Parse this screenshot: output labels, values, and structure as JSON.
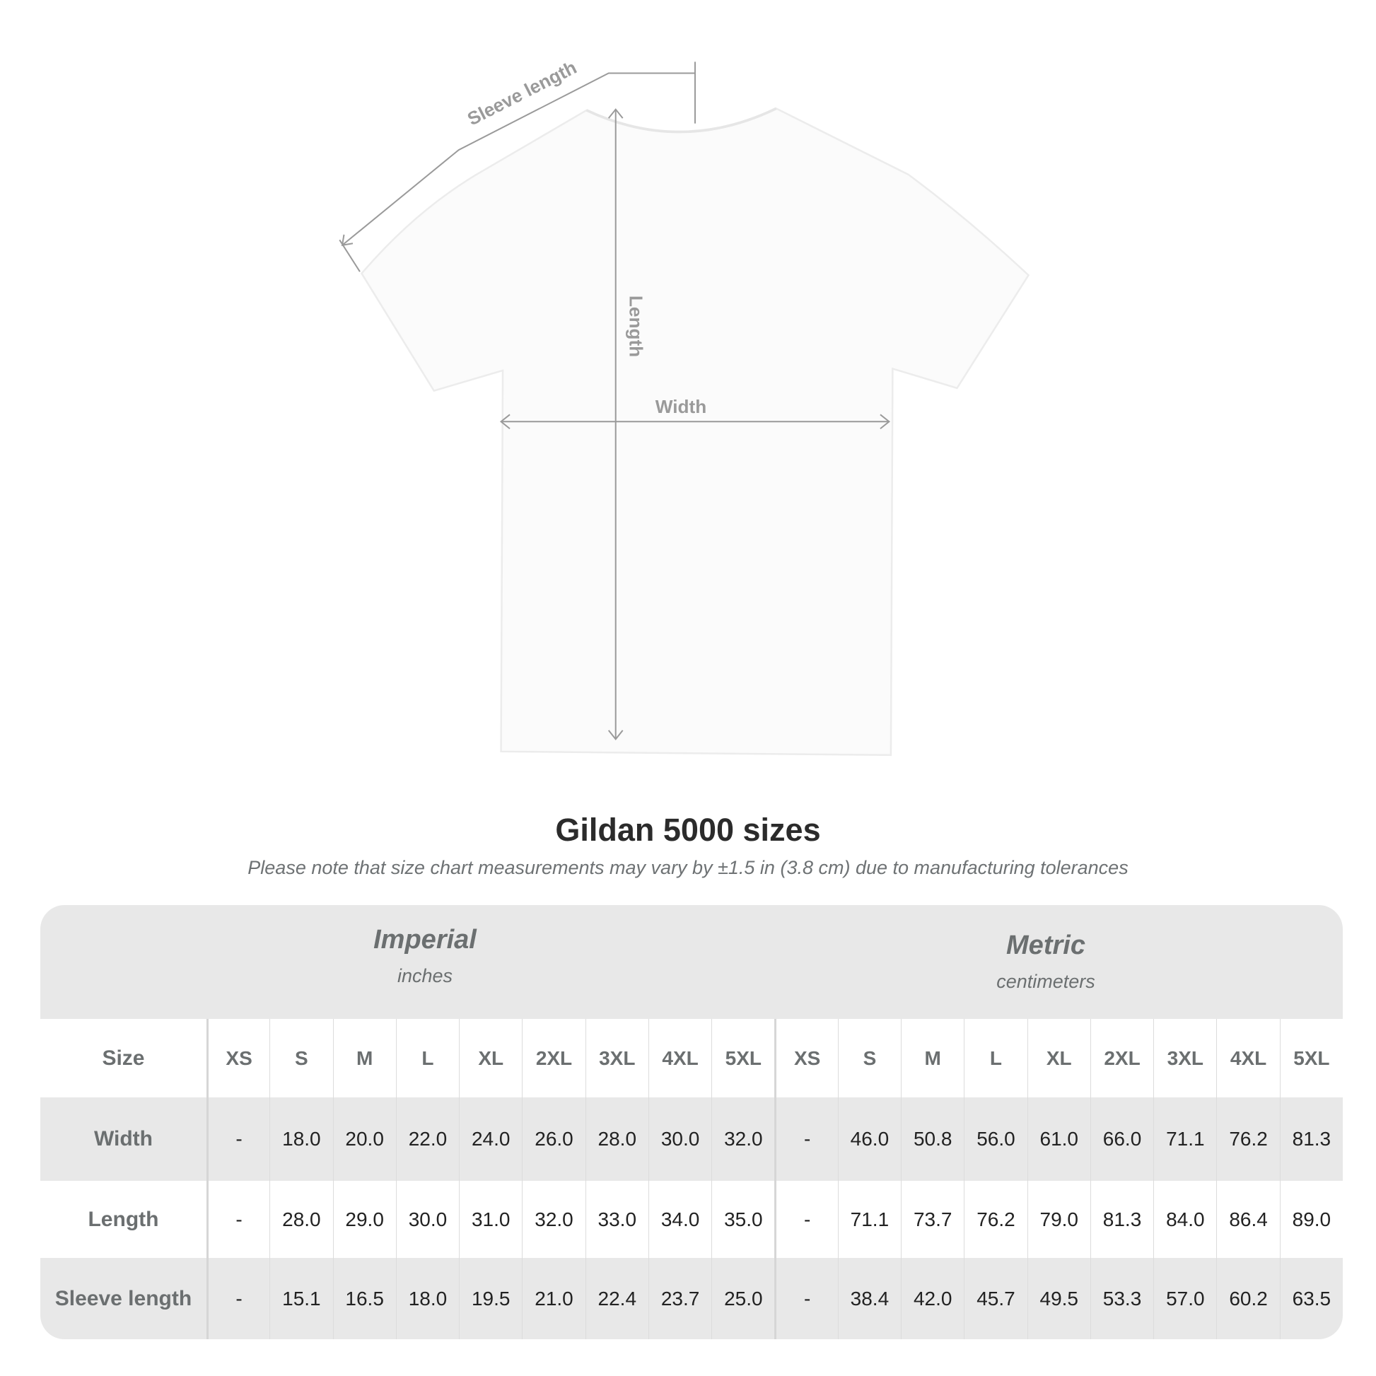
{
  "diagram": {
    "labels": {
      "sleeve": "Sleeve length",
      "length": "Length",
      "width": "Width"
    },
    "colors": {
      "lines": "#9a9a9a",
      "shirt": "#fbfbfb"
    }
  },
  "title": "Gildan 5000 sizes",
  "note": "Please note that size chart measurements may vary by ±1.5 in (3.8 cm) due to manufacturing tolerances",
  "table": {
    "imperial": {
      "name": "Imperial",
      "unit": "inches"
    },
    "metric": {
      "name": "Metric",
      "unit": "centimeters"
    },
    "size_label": "Size",
    "sizes": [
      "XS",
      "S",
      "M",
      "L",
      "XL",
      "2XL",
      "3XL",
      "4XL",
      "5XL"
    ],
    "rows": [
      {
        "label": "Width",
        "imperial": [
          "-",
          "18.0",
          "20.0",
          "22.0",
          "24.0",
          "26.0",
          "28.0",
          "30.0",
          "32.0"
        ],
        "metric": [
          "-",
          "46.0",
          "50.8",
          "56.0",
          "61.0",
          "66.0",
          "71.1",
          "76.2",
          "81.3"
        ]
      },
      {
        "label": "Length",
        "imperial": [
          "-",
          "28.0",
          "29.0",
          "30.0",
          "31.0",
          "32.0",
          "33.0",
          "34.0",
          "35.0"
        ],
        "metric": [
          "-",
          "71.1",
          "73.7",
          "76.2",
          "79.0",
          "81.3",
          "84.0",
          "86.4",
          "89.0"
        ]
      },
      {
        "label": "Sleeve length",
        "imperial": [
          "-",
          "15.1",
          "16.5",
          "18.0",
          "19.5",
          "21.0",
          "22.4",
          "23.7",
          "25.0"
        ],
        "metric": [
          "-",
          "38.4",
          "42.0",
          "45.7",
          "49.5",
          "53.3",
          "57.0",
          "60.2",
          "63.5"
        ]
      }
    ]
  }
}
